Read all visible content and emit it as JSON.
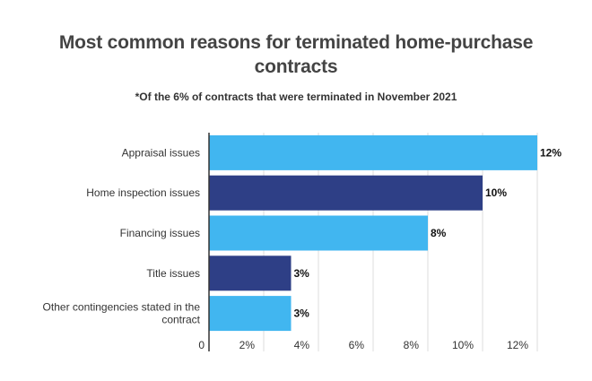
{
  "chart_data": {
    "type": "bar",
    "orientation": "horizontal",
    "title": "Most common reasons for terminated home-purchase contracts",
    "subtitle": "*Of the 6% of contracts that were terminated in November 2021",
    "categories": [
      "Appraisal issues",
      "Home inspection issues",
      "Financing issues",
      "Title issues",
      "Other contingencies stated in the contract"
    ],
    "values": [
      12,
      10,
      8,
      3,
      3
    ],
    "data_labels": [
      "12%",
      "10%",
      "8%",
      "3%",
      "3%"
    ],
    "bar_colors": [
      "#41b6f0",
      "#2e3f86",
      "#41b6f0",
      "#2e3f86",
      "#41b6f0"
    ],
    "xlim": [
      0,
      12
    ],
    "xticks": [
      0,
      2,
      4,
      6,
      8,
      10,
      12
    ],
    "xtick_labels": [
      "0",
      "2%",
      "4%",
      "6%",
      "8%",
      "10%",
      "12%"
    ],
    "grid": true,
    "legend": "none"
  }
}
